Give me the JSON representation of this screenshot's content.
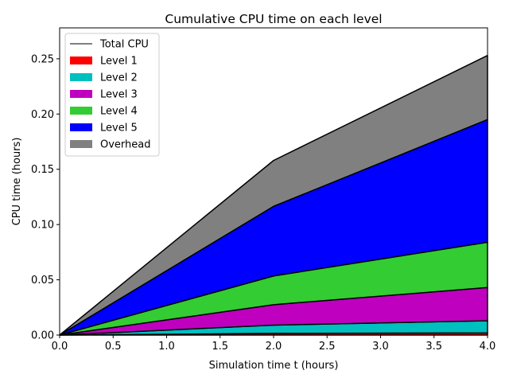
{
  "chart_data": {
    "type": "area",
    "stacked": true,
    "title": "Cumulative CPU time on each level",
    "xlabel": "Simulation time t (hours)",
    "ylabel": "CPU time (hours)",
    "xlim": [
      0,
      4
    ],
    "ylim": [
      0,
      0.278
    ],
    "x_ticks": [
      0,
      0.5,
      1,
      1.5,
      2,
      2.5,
      3,
      3.5,
      4
    ],
    "x_tick_labels": [
      "0.0",
      "0.5",
      "1.0",
      "1.5",
      "2.0",
      "2.5",
      "3.0",
      "3.5",
      "4.0"
    ],
    "y_ticks": [
      0,
      0.05,
      0.1,
      0.15,
      0.2,
      0.25
    ],
    "y_tick_labels": [
      "0.00",
      "0.05",
      "0.10",
      "0.15",
      "0.20",
      "0.25"
    ],
    "grid": false,
    "legend_position": "top-left",
    "x": [
      0,
      2,
      4
    ],
    "total": {
      "name": "Total CPU",
      "color": "#000000",
      "values": [
        0,
        0.158,
        0.253
      ]
    },
    "series": [
      {
        "name": "Level 1",
        "color": "#ff0000",
        "values": [
          0,
          0.0015,
          0.002
        ]
      },
      {
        "name": "Level 2",
        "color": "#00bfbf",
        "values": [
          0,
          0.0075,
          0.011
        ]
      },
      {
        "name": "Level 3",
        "color": "#bf00bf",
        "values": [
          0,
          0.0185,
          0.03
        ]
      },
      {
        "name": "Level 4",
        "color": "#33cc33",
        "values": [
          0,
          0.026,
          0.041
        ]
      },
      {
        "name": "Level 5",
        "color": "#0000ff",
        "values": [
          0,
          0.063,
          0.111
        ]
      },
      {
        "name": "Overhead",
        "color": "#808080",
        "values": [
          0,
          0.0415,
          0.058
        ]
      }
    ]
  }
}
